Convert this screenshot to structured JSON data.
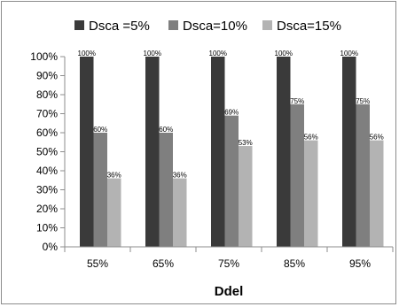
{
  "chart_data": {
    "type": "bar",
    "title": "",
    "xlabel": "Ddel",
    "ylabel": "",
    "categories": [
      "55%",
      "65%",
      "75%",
      "85%",
      "95%"
    ],
    "series": [
      {
        "name": "Dsca =5%",
        "values": [
          100,
          100,
          100,
          100,
          100
        ],
        "labels": [
          "100%",
          "100%",
          "100%",
          "100%",
          "100%"
        ],
        "color": "#3a3a3a"
      },
      {
        "name": "Dsca=10%",
        "values": [
          60,
          60,
          69,
          75,
          75
        ],
        "labels": [
          "60%",
          "60%",
          "69%",
          "75%",
          "75%"
        ],
        "color": "#7f7f7f"
      },
      {
        "name": "Dsca=15%",
        "values": [
          36,
          36,
          53,
          56,
          56
        ],
        "labels": [
          "36%",
          "36%",
          "53%",
          "56%",
          "56%"
        ],
        "color": "#b3b3b3"
      }
    ],
    "ylim": [
      0,
      100
    ],
    "yticks": [
      "0%",
      "10%",
      "20%",
      "30%",
      "40%",
      "50%",
      "60%",
      "70%",
      "80%",
      "90%",
      "100%"
    ],
    "grid": false,
    "legend_position": "top"
  }
}
